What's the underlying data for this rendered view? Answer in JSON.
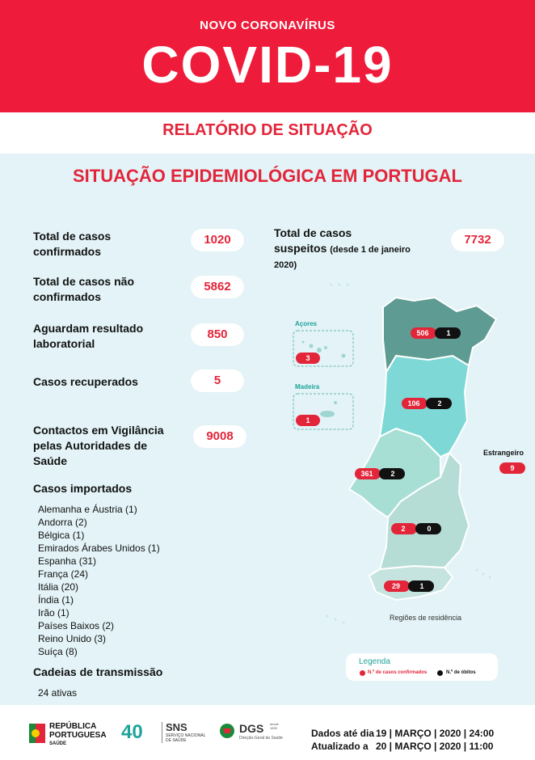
{
  "header": {
    "subtitle": "NOVO CORONAVÍRUS",
    "title": "COVID-19",
    "report": "RELATÓRIO DE SITUAÇÃO"
  },
  "section_title": "SITUAÇÃO EPIDEMIOLÓGICA EM PORTUGAL",
  "stats": {
    "confirmed_label_1": "Total de casos",
    "confirmed_label_2": "confirmados",
    "confirmed_value": "1020",
    "not_confirmed_label_1": "Total de casos não",
    "not_confirmed_label_2": "confirmados",
    "not_confirmed_value": "5862",
    "awaiting_label_1": "Aguardam resultado",
    "awaiting_label_2": "laboratorial",
    "awaiting_value": "850",
    "recovered_label": "Casos recuperados",
    "recovered_value": "5",
    "contacts_label_1": "Contactos em Vigilância",
    "contacts_label_2": "pelas Autoridades de",
    "contacts_label_3": "Saúde",
    "contacts_value": "9008",
    "suspected_label_1": "Total de casos",
    "suspected_label_2": "suspeitos",
    "suspected_note_1": "(desde 1 de janeiro",
    "suspected_note_2": "2020)",
    "suspected_value": "7732"
  },
  "imported": {
    "title": "Casos importados",
    "items": [
      "Alemanha e Áustria (1)",
      "Andorra (2)",
      "Bélgica (1)",
      "Emirados Árabes Unidos (1)",
      "Espanha (31)",
      "França (24)",
      "Itália (20)",
      "Índia (1)",
      "Irão (1)",
      "Países Baixos (2)",
      "Reino Unido (3)",
      "Suíça (8)"
    ]
  },
  "chains": {
    "title": "Cadeias de transmissão",
    "value": "24 ativas"
  },
  "map": {
    "azores_label": "Açores",
    "azores_cases": "3",
    "madeira_label": "Madeira",
    "madeira_cases": "1",
    "north_cases": "506",
    "north_deaths": "1",
    "centre_cases": "106",
    "centre_deaths": "2",
    "lisbon_cases": "361",
    "lisbon_deaths": "2",
    "alentejo_cases": "2",
    "alentejo_deaths": "0",
    "algarve_cases": "29",
    "algarve_deaths": "1",
    "abroad_label": "Estrangeiro",
    "abroad_cases": "9",
    "regions_caption": "Regiões de residência",
    "colors": {
      "north": "#5e9b92",
      "centre": "#7ed9d6",
      "lisbon": "#a8dfd5",
      "alentejo": "#b6dcd6",
      "algarve": "#c6e4df"
    }
  },
  "legend": {
    "title": "Legenda",
    "confirmed": "N.º de casos confirmados",
    "deaths": "N.º de óbitos"
  },
  "footer": {
    "republica_1": "REPÚBLICA",
    "republica_2": "PORTUGUESA",
    "republica_3": "SAÚDE",
    "sns": "SNS",
    "sns_sub_1": "SERVIÇO NACIONAL",
    "sns_sub_2": "DE SAÚDE",
    "anos": "40",
    "dgs": "DGS",
    "dgs_sub": "Direção-Geral da Saúde",
    "dgs_since": "desde 1899",
    "data_label": "Dados até dia",
    "data_value": "19 | MARÇO | 2020 | 24:00",
    "updated_label": "Atualizado a",
    "updated_value": "20 | MARÇO | 2020 | 11:00"
  },
  "brand_colors": {
    "red": "#ee1c3a",
    "panel": "#e3f3f7"
  }
}
